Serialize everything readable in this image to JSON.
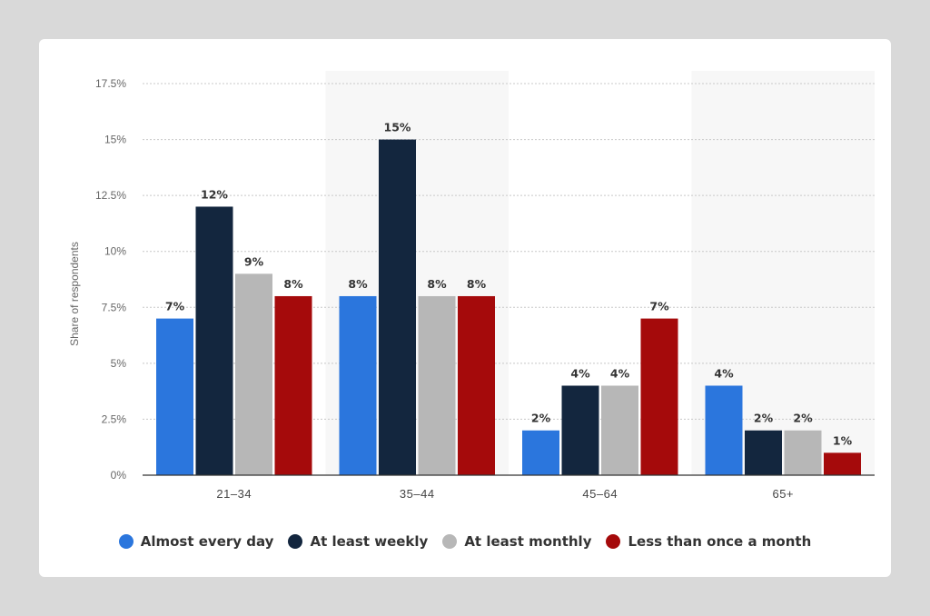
{
  "chart_data": {
    "type": "bar",
    "categories": [
      "21-34",
      "35-44",
      "45-64",
      "65+"
    ],
    "series": [
      {
        "name": "Almost every day",
        "color": "#2b76dd",
        "values": [
          7,
          8,
          2,
          4
        ],
        "labels": [
          "7%",
          "8%",
          "2%",
          "4%"
        ]
      },
      {
        "name": "At least weekly",
        "color": "#13263e",
        "values": [
          12,
          15,
          4,
          2
        ],
        "labels": [
          "12%",
          "15%",
          "4%",
          "2%"
        ]
      },
      {
        "name": "At least monthly",
        "color": "#b7b7b7",
        "values": [
          9,
          8,
          4,
          2
        ],
        "labels": [
          "9%",
          "8%",
          "4%",
          "2%"
        ]
      },
      {
        "name": "Less than once a month",
        "color": "#a50a0b",
        "values": [
          8,
          8,
          7,
          1
        ],
        "labels": [
          "8%",
          "8%",
          "7%",
          "1%"
        ]
      }
    ],
    "ylabel": "Share of respondents",
    "ylim": [
      0,
      17.5
    ],
    "yticks": [
      0,
      2.5,
      5,
      7.5,
      10,
      12.5,
      15,
      17.5
    ],
    "ytick_labels": [
      "0%",
      "2.5%",
      "5%",
      "7.5%",
      "10%",
      "12.5%",
      "15%",
      "17.5%"
    ],
    "grid": true,
    "legend_position": "bottom"
  }
}
